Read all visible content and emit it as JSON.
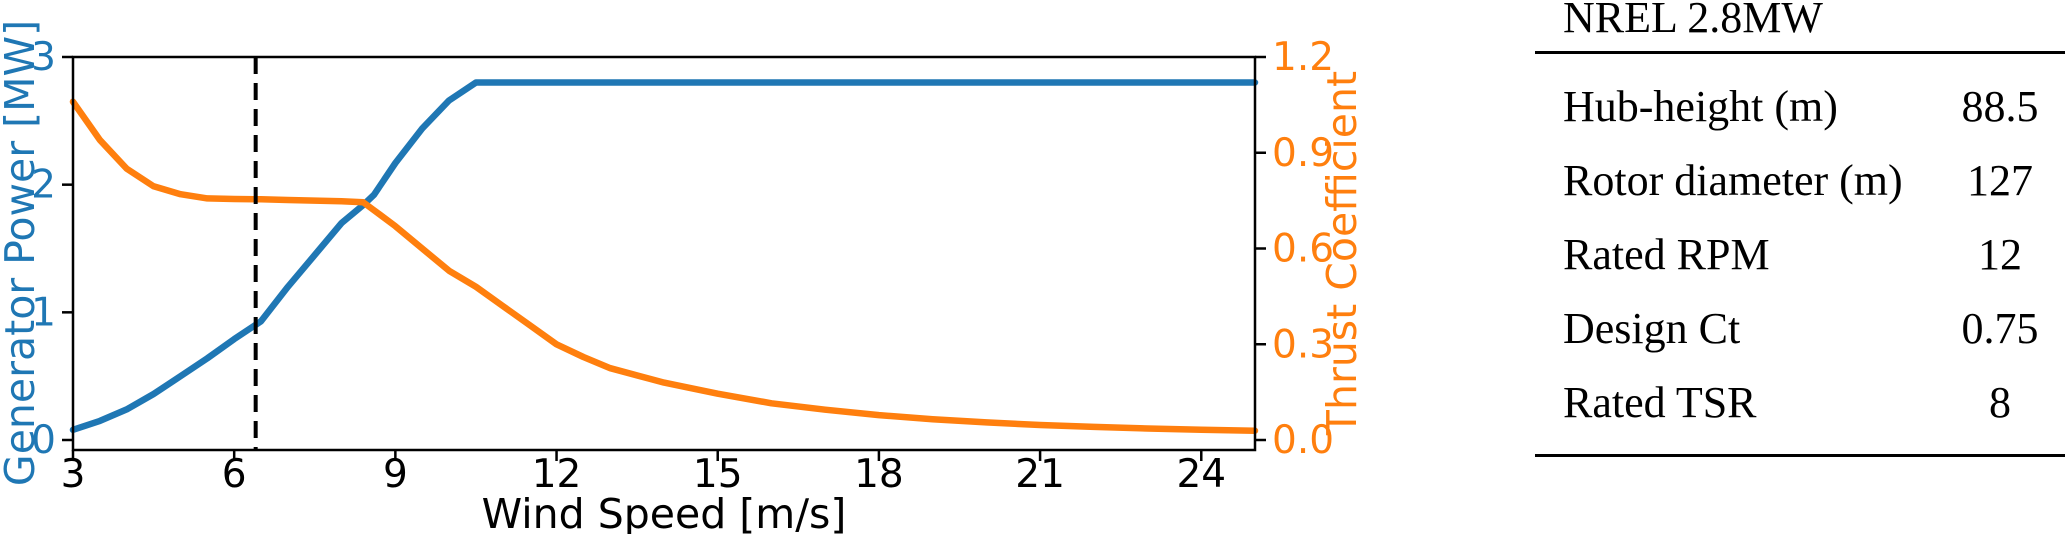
{
  "chart_data": {
    "type": "line",
    "xlabel": "Wind Speed [m/s]",
    "xlim": [
      3,
      25
    ],
    "x_ticks": [
      3,
      6,
      9,
      12,
      15,
      18,
      21,
      24
    ],
    "grid": false,
    "legend": "none",
    "left_axis": {
      "label": "Generator Power [MW]",
      "color": "#1f77b4",
      "lim": [
        0,
        3
      ],
      "ticks": [
        0,
        1,
        2,
        3
      ]
    },
    "right_axis": {
      "label": "Thrust Coefficient",
      "color": "#ff7f0e",
      "lim": [
        0,
        1.2
      ],
      "ticks": [
        0.0,
        0.3,
        0.6,
        0.9,
        1.2
      ]
    },
    "series": [
      {
        "name": "generator-power",
        "axis": "left",
        "color": "#1f77b4",
        "x": [
          3,
          3.5,
          4,
          4.5,
          5,
          5.5,
          6,
          6.5,
          7,
          7.5,
          8,
          8.4,
          8.6,
          9,
          9.5,
          10,
          10.5,
          11,
          12,
          13,
          14,
          15,
          16,
          17,
          18,
          19,
          20,
          21,
          22,
          23,
          24,
          25
        ],
        "values": [
          0.08,
          0.15,
          0.24,
          0.36,
          0.5,
          0.64,
          0.79,
          0.93,
          1.2,
          1.45,
          1.7,
          1.84,
          1.92,
          2.17,
          2.44,
          2.66,
          2.8,
          2.8,
          2.8,
          2.8,
          2.8,
          2.8,
          2.8,
          2.8,
          2.8,
          2.8,
          2.8,
          2.8,
          2.8,
          2.8,
          2.8,
          2.8
        ]
      },
      {
        "name": "thrust-coefficient",
        "axis": "right",
        "color": "#ff7f0e",
        "x": [
          3,
          3.5,
          4,
          4.5,
          5,
          5.5,
          6,
          6.5,
          7,
          7.5,
          8,
          8.4,
          8.6,
          9,
          9.5,
          10,
          10.5,
          11,
          11.5,
          12,
          12.5,
          13,
          14,
          15,
          16,
          17,
          18,
          19,
          20,
          21,
          22,
          23,
          24,
          25
        ],
        "values": [
          1.06,
          0.94,
          0.85,
          0.795,
          0.77,
          0.757,
          0.755,
          0.754,
          0.752,
          0.75,
          0.748,
          0.745,
          0.72,
          0.67,
          0.6,
          0.53,
          0.48,
          0.42,
          0.36,
          0.3,
          0.26,
          0.225,
          0.18,
          0.145,
          0.115,
          0.095,
          0.078,
          0.065,
          0.055,
          0.047,
          0.041,
          0.036,
          0.032,
          0.029
        ]
      }
    ],
    "annotations": [
      {
        "type": "vline",
        "x": 6.4,
        "line_style": "dashed",
        "color": "#000000"
      }
    ]
  },
  "table": {
    "title": "NREL 2.8MW",
    "rows": [
      {
        "label": "Hub-height (m)",
        "value": "88.5"
      },
      {
        "label": "Rotor diameter (m)",
        "value": "127"
      },
      {
        "label": "Rated RPM",
        "value": "12"
      },
      {
        "label": "Design Ct",
        "value": "0.75"
      },
      {
        "label": "Rated TSR",
        "value": "8"
      }
    ]
  }
}
